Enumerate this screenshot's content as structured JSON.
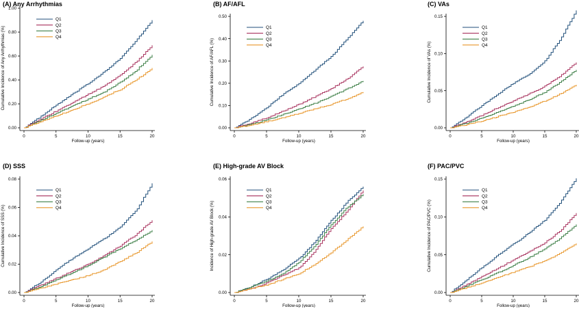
{
  "chart_data": [
    {
      "type": "line",
      "title": "(A) Any Arrhythmias",
      "xlabel": "Follow-up (years)",
      "ylabel": "Cumulative Incidence of Any Arrhythmias (%)",
      "xlim": [
        0,
        20
      ],
      "ylim": [
        0,
        1.0
      ],
      "xticks": [
        "0",
        "5",
        "10",
        "15",
        "20"
      ],
      "yticks": [
        "0.00",
        "0.20",
        "0.40",
        "0.60",
        "0.80",
        "1.00"
      ],
      "grid": false,
      "legend": "top-left",
      "x": [
        0,
        2.5,
        5,
        7.5,
        10,
        12.5,
        15,
        17.5,
        20
      ],
      "series": [
        {
          "name": "Q1",
          "color": "#1f4e79",
          "values": [
            0,
            0.09,
            0.19,
            0.28,
            0.37,
            0.47,
            0.58,
            0.73,
            0.9
          ]
        },
        {
          "name": "Q2",
          "color": "#a8325e",
          "values": [
            0,
            0.07,
            0.14,
            0.21,
            0.28,
            0.35,
            0.44,
            0.55,
            0.69
          ]
        },
        {
          "name": "Q3",
          "color": "#3a7d44",
          "values": [
            0,
            0.06,
            0.12,
            0.18,
            0.24,
            0.3,
            0.38,
            0.48,
            0.61
          ]
        },
        {
          "name": "Q4",
          "color": "#e8962a",
          "values": [
            0,
            0.05,
            0.1,
            0.15,
            0.2,
            0.26,
            0.32,
            0.4,
            0.5
          ]
        }
      ]
    },
    {
      "type": "line",
      "title": "(B) AF/AFL",
      "xlabel": "Follow-up (years)",
      "ylabel": "Cumulative Incidence of AF/AFL (%)",
      "xlim": [
        0,
        20
      ],
      "ylim": [
        0,
        0.5
      ],
      "xticks": [
        "0",
        "5",
        "10",
        "15",
        "20"
      ],
      "yticks": [
        "0.00",
        "0.10",
        "0.20",
        "0.30",
        "0.40",
        "0.50"
      ],
      "grid": false,
      "legend": "top-left",
      "x": [
        0,
        2.5,
        5,
        7.5,
        10,
        12.5,
        15,
        17.5,
        20
      ],
      "series": [
        {
          "name": "Q1",
          "color": "#1f4e79",
          "values": [
            0,
            0.04,
            0.09,
            0.15,
            0.2,
            0.26,
            0.32,
            0.4,
            0.48
          ]
        },
        {
          "name": "Q2",
          "color": "#a8325e",
          "values": [
            0,
            0.02,
            0.045,
            0.075,
            0.105,
            0.14,
            0.175,
            0.22,
            0.275
          ]
        },
        {
          "name": "Q3",
          "color": "#3a7d44",
          "values": [
            0,
            0.015,
            0.035,
            0.06,
            0.085,
            0.11,
            0.14,
            0.175,
            0.21
          ]
        },
        {
          "name": "Q4",
          "color": "#e8962a",
          "values": [
            0,
            0.012,
            0.028,
            0.045,
            0.065,
            0.085,
            0.105,
            0.13,
            0.16
          ]
        }
      ]
    },
    {
      "type": "line",
      "title": "(C) VAs",
      "xlabel": "Follow-up (years)",
      "ylabel": "Cumulative Incidence of VAs (%)",
      "xlim": [
        0,
        20
      ],
      "ylim": [
        0,
        0.15
      ],
      "xticks": [
        "0",
        "5",
        "10",
        "15",
        "20"
      ],
      "yticks": [
        "0.00",
        "0.05",
        "0.10",
        "0.15"
      ],
      "grid": false,
      "legend": "top-left",
      "x": [
        0,
        2.5,
        5,
        7.5,
        10,
        12.5,
        15,
        17.5,
        20
      ],
      "series": [
        {
          "name": "Q1",
          "color": "#1f4e79",
          "values": [
            0,
            0.014,
            0.03,
            0.045,
            0.06,
            0.072,
            0.09,
            0.12,
            0.158
          ]
        },
        {
          "name": "Q2",
          "color": "#a8325e",
          "values": [
            0,
            0.008,
            0.017,
            0.027,
            0.036,
            0.046,
            0.056,
            0.07,
            0.088
          ]
        },
        {
          "name": "Q3",
          "color": "#3a7d44",
          "values": [
            0,
            0.006,
            0.013,
            0.021,
            0.029,
            0.038,
            0.048,
            0.062,
            0.078
          ]
        },
        {
          "name": "Q4",
          "color": "#e8962a",
          "values": [
            0,
            0.004,
            0.009,
            0.015,
            0.021,
            0.028,
            0.036,
            0.046,
            0.058
          ]
        }
      ]
    },
    {
      "type": "line",
      "title": "(D) SSS",
      "xlabel": "Follow-up (years)",
      "ylabel": "Cumulative Incidence of SSS (%)",
      "xlim": [
        0,
        20
      ],
      "ylim": [
        0,
        0.08
      ],
      "xticks": [
        "0",
        "5",
        "10",
        "15",
        "20"
      ],
      "yticks": [
        "0.00",
        "0.02",
        "0.04",
        "0.06",
        "0.08"
      ],
      "grid": false,
      "legend": "top-left",
      "x": [
        0,
        2.5,
        5,
        7.5,
        10,
        12.5,
        15,
        17.5,
        20
      ],
      "series": [
        {
          "name": "Q1",
          "color": "#1f4e79",
          "values": [
            0,
            0.007,
            0.016,
            0.024,
            0.031,
            0.038,
            0.046,
            0.058,
            0.077
          ]
        },
        {
          "name": "Q2",
          "color": "#a8325e",
          "values": [
            0,
            0.005,
            0.01,
            0.015,
            0.02,
            0.026,
            0.033,
            0.041,
            0.051
          ]
        },
        {
          "name": "Q3",
          "color": "#3a7d44",
          "values": [
            0,
            0.004,
            0.009,
            0.014,
            0.019,
            0.025,
            0.031,
            0.037,
            0.044
          ]
        },
        {
          "name": "Q4",
          "color": "#e8962a",
          "values": [
            0,
            0.003,
            0.006,
            0.009,
            0.012,
            0.016,
            0.022,
            0.028,
            0.036
          ]
        }
      ]
    },
    {
      "type": "line",
      "title": "(E) High-grade AV Block",
      "xlabel": "Follow-up (years)",
      "ylabel": "Incidence of High-grade AV Block (%)",
      "xlim": [
        0,
        20
      ],
      "ylim": [
        0,
        0.06
      ],
      "xticks": [
        "0",
        "5",
        "10",
        "15",
        "20"
      ],
      "yticks": [
        "0.00",
        "0.02",
        "0.04",
        "0.06"
      ],
      "grid": false,
      "legend": "top-left",
      "x": [
        0,
        2.5,
        5,
        7.5,
        10,
        12.5,
        15,
        17.5,
        20
      ],
      "series": [
        {
          "name": "Q1",
          "color": "#1f4e79",
          "values": [
            0,
            0.003,
            0.007,
            0.012,
            0.018,
            0.027,
            0.038,
            0.048,
            0.056
          ]
        },
        {
          "name": "Q2",
          "color": "#a8325e",
          "values": [
            0,
            0.002,
            0.005,
            0.009,
            0.013,
            0.022,
            0.034,
            0.043,
            0.054
          ]
        },
        {
          "name": "Q3",
          "color": "#3a7d44",
          "values": [
            0,
            0.003,
            0.006,
            0.01,
            0.016,
            0.025,
            0.036,
            0.045,
            0.052
          ]
        },
        {
          "name": "Q4",
          "color": "#e8962a",
          "values": [
            0,
            0.002,
            0.004,
            0.007,
            0.01,
            0.015,
            0.021,
            0.028,
            0.035
          ]
        }
      ]
    },
    {
      "type": "line",
      "title": "(F) PAC/PVC",
      "xlabel": "Follow-up (years)",
      "ylabel": "Cumulative Incidence of PAC/PVC (%)",
      "xlim": [
        0,
        20
      ],
      "ylim": [
        0,
        0.15
      ],
      "xticks": [
        "0",
        "5",
        "10",
        "15",
        "20"
      ],
      "yticks": [
        "0.00",
        "0.05",
        "0.10",
        "0.15"
      ],
      "grid": false,
      "legend": "top-left",
      "x": [
        0,
        2.5,
        5,
        7.5,
        10,
        12.5,
        15,
        17.5,
        20
      ],
      "series": [
        {
          "name": "Q1",
          "color": "#1f4e79",
          "values": [
            0,
            0.016,
            0.033,
            0.049,
            0.064,
            0.079,
            0.096,
            0.12,
            0.151
          ]
        },
        {
          "name": "Q2",
          "color": "#a8325e",
          "values": [
            0,
            0.01,
            0.021,
            0.032,
            0.043,
            0.054,
            0.066,
            0.082,
            0.105
          ]
        },
        {
          "name": "Q3",
          "color": "#3a7d44",
          "values": [
            0,
            0.008,
            0.017,
            0.026,
            0.036,
            0.046,
            0.058,
            0.072,
            0.09
          ]
        },
        {
          "name": "Q4",
          "color": "#e8962a",
          "values": [
            0,
            0.006,
            0.013,
            0.02,
            0.027,
            0.034,
            0.042,
            0.052,
            0.065
          ]
        }
      ]
    }
  ]
}
